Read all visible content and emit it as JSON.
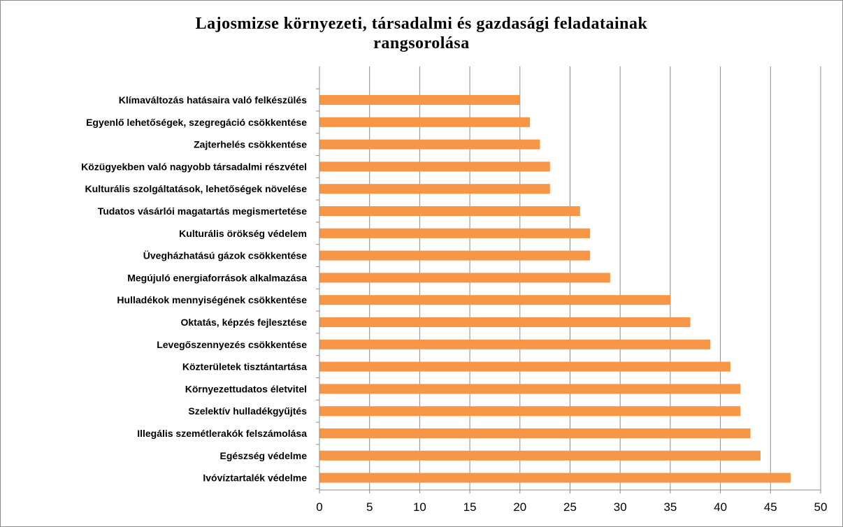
{
  "chart_data": {
    "type": "bar",
    "orientation": "horizontal",
    "title": "Lajosmizse környezeti, társadalmi és gazdasági feladatainak rangsorolása",
    "categories": [
      "Klímaváltozás hatásaira való felkészülés",
      "Egyenlő lehetőségek, szegregáció csökkentése",
      "Zajterhelés csökkentése",
      "Közügyekben való nagyobb társadalmi részvétel",
      "Kulturális szolgáltatások, lehetőségek növelése",
      "Tudatos vásárlói magatartás megismertetése",
      "Kulturális örökség védelem",
      "Üvegházhatású gázok csökkentése",
      "Megújuló energiaforrások alkalmazása",
      "Hulladékok mennyiségének csökkentése",
      "Oktatás, képzés fejlesztése",
      "Levegőszennyezés csökkentése",
      "Közterületek tisztántartása",
      "Környezettudatos életvitel",
      "Szelektív hulladékgyűjtés",
      "Illegális szemétlerakók felszámolása",
      "Egészség védelme",
      "Ivóvíztartalék védelme"
    ],
    "values": [
      20,
      21,
      22,
      23,
      23,
      26,
      27,
      27,
      29,
      35,
      37,
      39,
      41,
      42,
      42,
      43,
      44,
      47
    ],
    "xlim": [
      0,
      50
    ],
    "xticks": [
      0,
      5,
      10,
      15,
      20,
      25,
      30,
      35,
      40,
      45,
      50
    ],
    "grid": "vertical",
    "legend": "none",
    "bar_color": "#f79646",
    "grid_color": "#8c8c8c"
  }
}
